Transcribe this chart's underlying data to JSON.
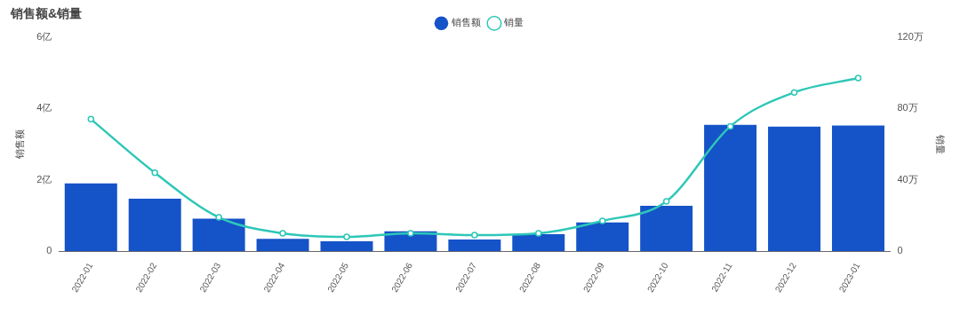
{
  "chart_data": {
    "type": "bar",
    "title": "销售额&销量",
    "ylabel": "销售额",
    "y2label": "销量",
    "categories": [
      "2022-01",
      "2022-02",
      "2022-03",
      "2022-04",
      "2022-05",
      "2022-06",
      "2022-07",
      "2022-08",
      "2022-09",
      "2022-10",
      "2022-11",
      "2022-12",
      "2023-01"
    ],
    "series": [
      {
        "name": "销售额",
        "color": "#1553c8",
        "values": [
          1.9,
          1.47,
          0.91,
          0.35,
          0.28,
          0.56,
          0.33,
          0.48,
          0.81,
          1.27,
          3.54,
          3.49,
          3.52
        ]
      },
      {
        "name": "销量",
        "type": "line",
        "axis": "y2",
        "color": "#2ec7b8",
        "marker": "circle",
        "values": [
          74,
          44,
          19,
          10,
          8,
          10,
          9,
          10,
          17,
          28,
          70,
          89,
          97
        ]
      }
    ],
    "ylim": [
      0,
      6
    ],
    "yticks": [
      0,
      {
        "value": 2,
        "label": "2亿"
      },
      {
        "value": 4,
        "label": "4亿"
      },
      {
        "value": 6,
        "label": "6亿"
      }
    ],
    "y2lim": [
      0,
      120
    ],
    "y2ticks": [
      0,
      {
        "value": 40,
        "label": "40万"
      },
      {
        "value": 80,
        "label": "80万"
      },
      {
        "value": 120,
        "label": "120万"
      }
    ],
    "legend": "top",
    "grid": false
  }
}
